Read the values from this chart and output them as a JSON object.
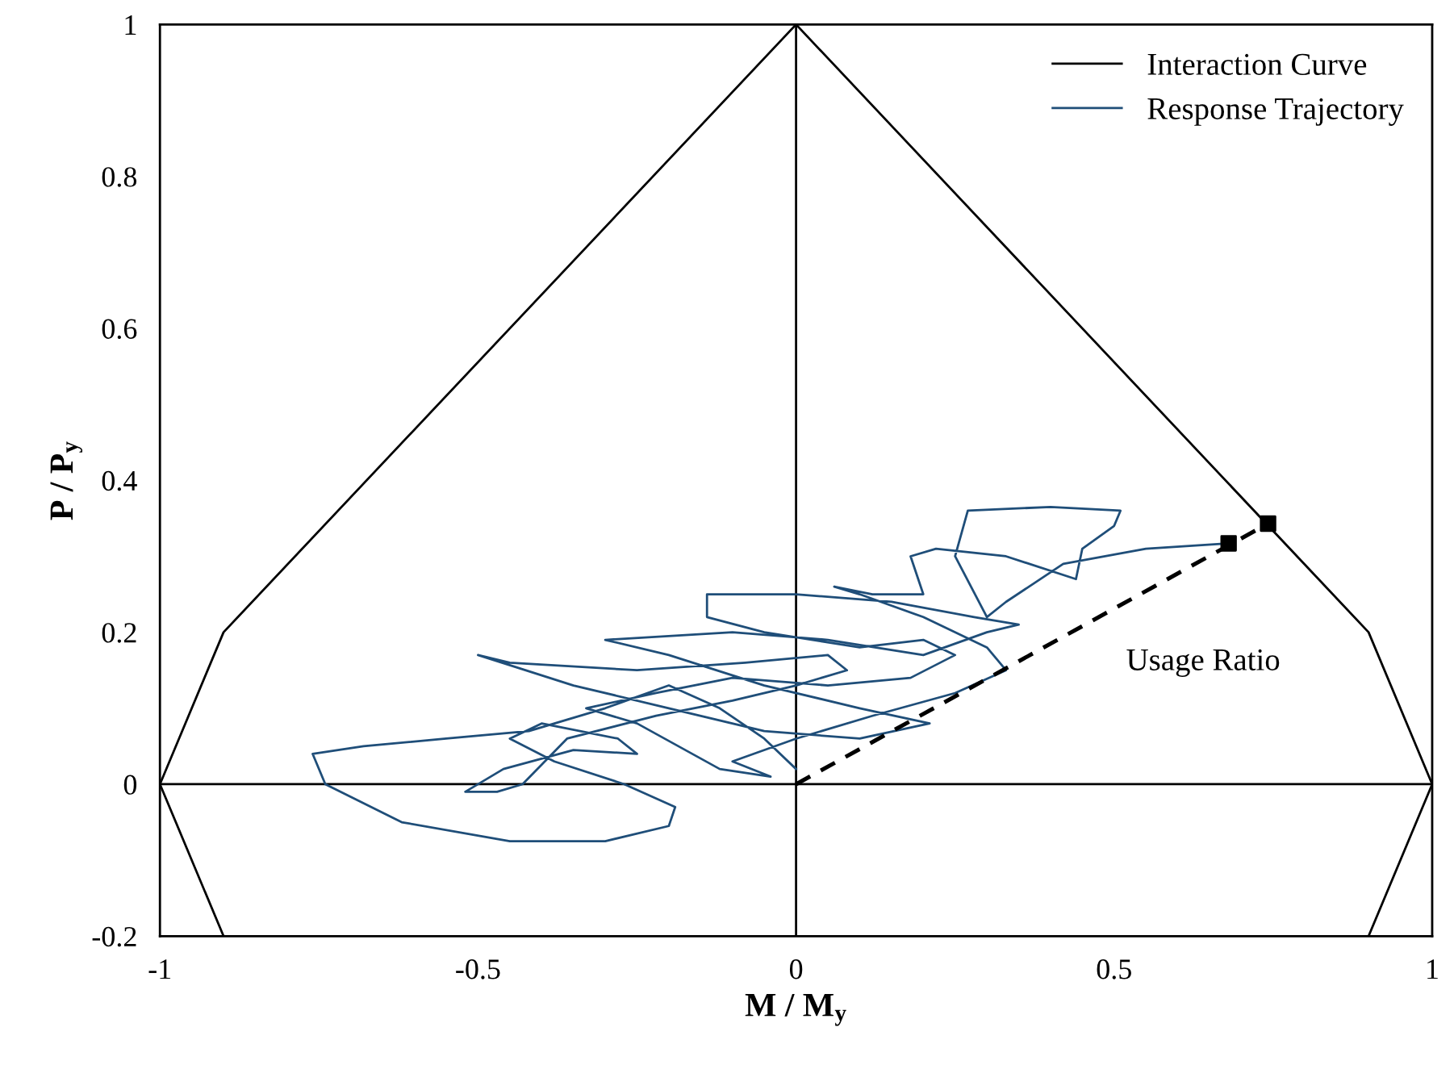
{
  "chart_data": {
    "type": "line",
    "xlabel": "M / M$_{y}$",
    "ylabel": "P / P$_{y}$",
    "xlim": [
      -1,
      1
    ],
    "xticks": [
      -1,
      -0.5,
      0,
      0.5,
      1
    ],
    "ylim": [
      -0.2,
      1
    ],
    "yticks": [
      -0.2,
      0,
      0.2,
      0.4,
      0.6,
      0.8,
      1
    ],
    "grid": false,
    "legend": "top right",
    "annotations": [
      "Usage Ratio"
    ],
    "series": [
      {
        "color": "#000000",
        "line_style": "solid",
        "marker": "none",
        "x": [
          0,
          0
        ],
        "values": [
          -0.2,
          1
        ]
      },
      {
        "color": "#000000",
        "line_style": "solid",
        "marker": "none",
        "x": [
          -1,
          1
        ],
        "values": [
          0,
          0
        ]
      },
      {
        "name": "Interaction Curve",
        "color": "#000000",
        "line_style": "solid",
        "marker": "none",
        "x": [
          -0.9,
          -1,
          -0.9,
          0,
          0.9,
          1,
          0.9
        ],
        "values": [
          -0.2,
          0,
          0.2,
          1,
          0.2,
          0,
          -0.2
        ]
      },
      {
        "name": "Response Trajectory",
        "color": "#1f4e79",
        "line_style": "solid",
        "marker": "none",
        "x": [
          0,
          -0.05,
          -0.12,
          -0.2,
          -0.3,
          -0.42,
          -0.55,
          -0.68,
          -0.76,
          -0.74,
          -0.62,
          -0.45,
          -0.3,
          -0.2,
          -0.19,
          -0.27,
          -0.38,
          -0.45,
          -0.4,
          -0.28,
          -0.25,
          -0.35,
          -0.46,
          -0.52,
          -0.47,
          -0.43,
          -0.36,
          -0.22,
          -0.1,
          0.0,
          0.08,
          0.05,
          -0.08,
          -0.25,
          -0.45,
          -0.5,
          -0.35,
          -0.2,
          -0.05,
          0.1,
          0.21,
          0.1,
          -0.05,
          -0.2,
          -0.3,
          -0.1,
          0.05,
          0.2,
          0.3,
          0.35,
          0.28,
          0.15,
          0.0,
          -0.14,
          -0.14,
          -0.05,
          0.1,
          0.2,
          0.25,
          0.18,
          0.05,
          -0.1,
          -0.22,
          -0.33,
          -0.25,
          -0.12,
          -0.04,
          -0.1,
          0.0,
          0.12,
          0.25,
          0.33,
          0.3,
          0.2,
          0.1,
          0.06,
          0.12,
          0.2,
          0.18,
          0.22,
          0.33,
          0.44,
          0.45,
          0.5,
          0.51,
          0.4,
          0.27,
          0.25,
          0.3,
          0.33,
          0.42,
          0.55,
          0.68
        ],
        "values": [
          0.02,
          0.06,
          0.1,
          0.13,
          0.1,
          0.07,
          0.06,
          0.05,
          0.04,
          0.0,
          -0.05,
          -0.075,
          -0.075,
          -0.055,
          -0.03,
          0.0,
          0.03,
          0.06,
          0.08,
          0.06,
          0.04,
          0.045,
          0.02,
          -0.01,
          -0.01,
          0.0,
          0.06,
          0.09,
          0.11,
          0.13,
          0.15,
          0.17,
          0.16,
          0.15,
          0.16,
          0.17,
          0.13,
          0.1,
          0.07,
          0.06,
          0.08,
          0.1,
          0.13,
          0.17,
          0.19,
          0.2,
          0.19,
          0.17,
          0.2,
          0.21,
          0.22,
          0.24,
          0.25,
          0.25,
          0.22,
          0.2,
          0.18,
          0.19,
          0.17,
          0.14,
          0.13,
          0.14,
          0.12,
          0.1,
          0.08,
          0.02,
          0.01,
          0.03,
          0.06,
          0.09,
          0.12,
          0.15,
          0.18,
          0.22,
          0.25,
          0.26,
          0.25,
          0.25,
          0.3,
          0.31,
          0.3,
          0.27,
          0.31,
          0.34,
          0.36,
          0.365,
          0.36,
          0.3,
          0.22,
          0.24,
          0.29,
          0.31,
          0.317
        ]
      },
      {
        "color": "#000000",
        "line_style": "dashed",
        "marker": "none",
        "x": [
          0,
          0.742
        ],
        "values": [
          0,
          0.343
        ]
      },
      {
        "type": "scatter",
        "color": "#000000",
        "marker": "square",
        "x": [
          0.68,
          0.742
        ],
        "values": [
          0.317,
          0.343
        ]
      }
    ]
  }
}
